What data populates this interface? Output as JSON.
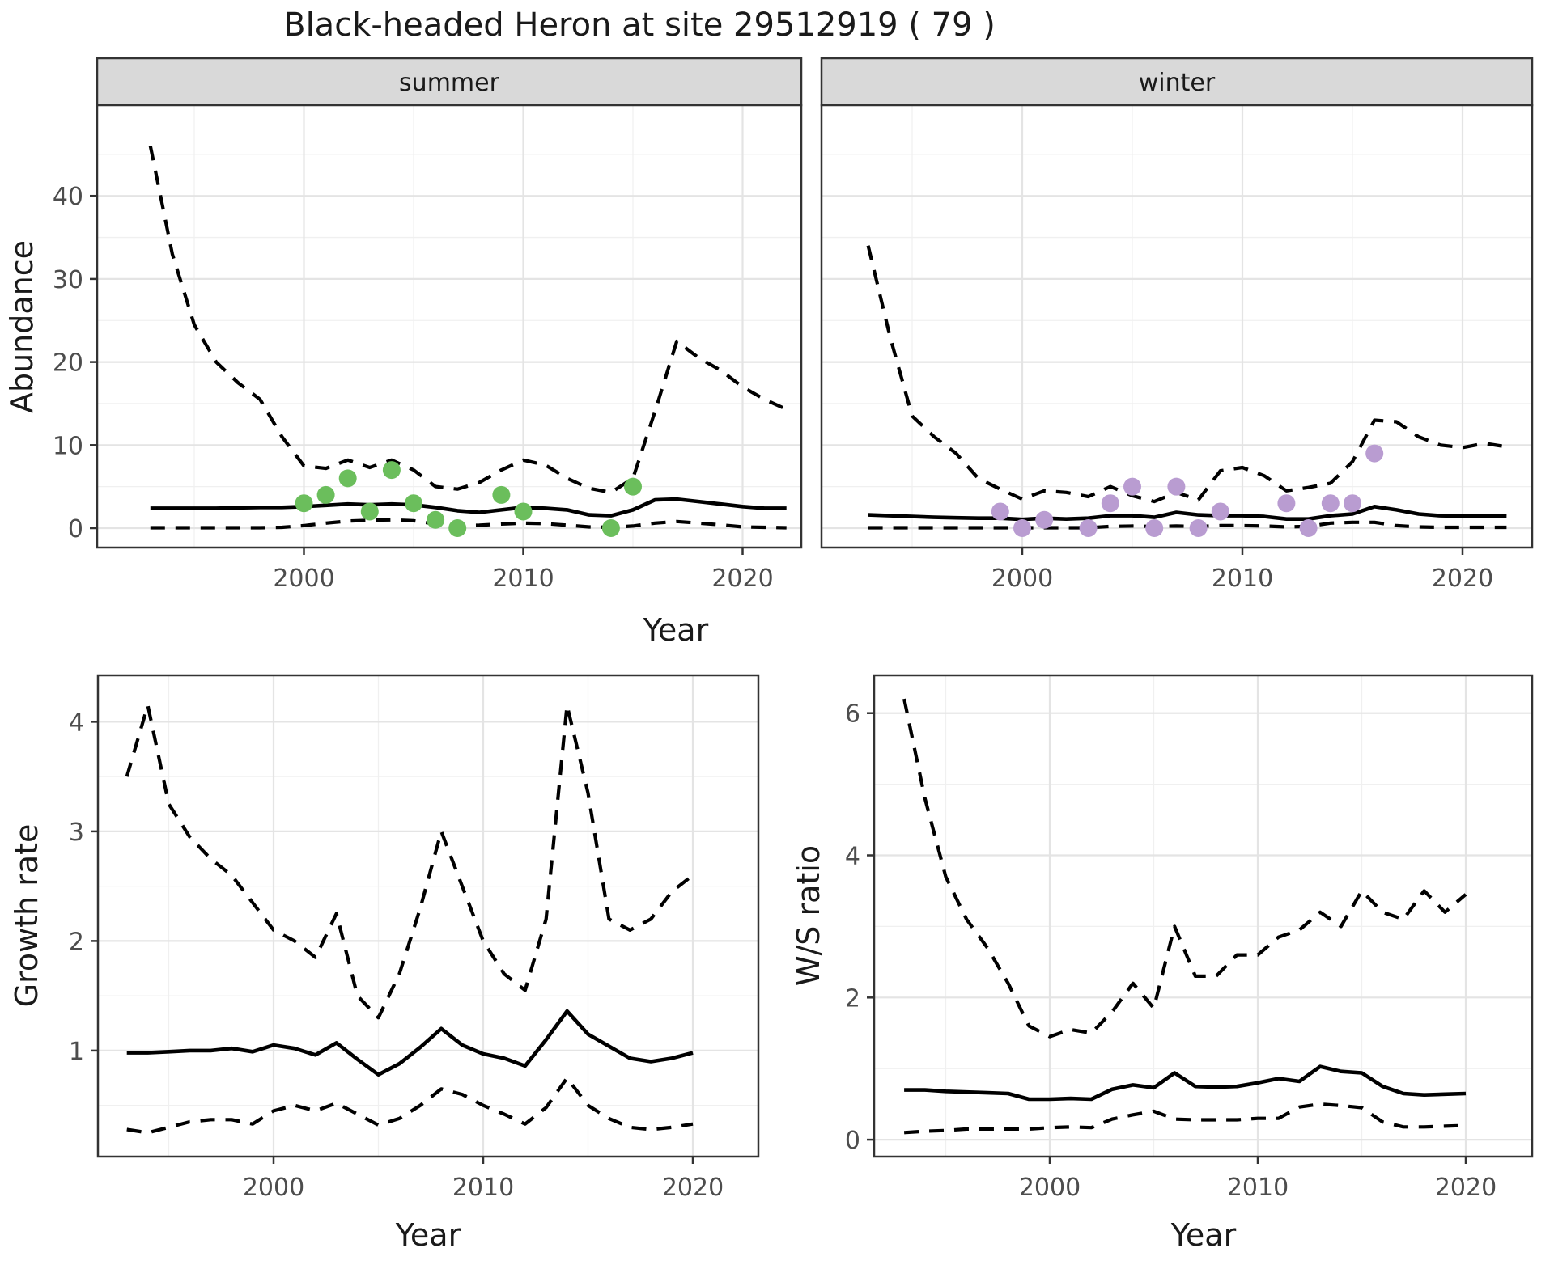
{
  "title": "Black-headed Heron at site 29512919 ( 79 )",
  "axis_titles": {
    "abundance": "Abundance",
    "growth": "Growth rate",
    "ws": "W/S ratio",
    "year": "Year"
  },
  "facets": [
    "summer",
    "winter"
  ],
  "colors": {
    "summer_points": "#6BBE5C",
    "winter_points": "#B99CD1",
    "line": "#000000",
    "grid_major": "#E4E4E4",
    "grid_minor": "#F0F0F0",
    "strip_bg": "#D9D9D9",
    "panel_border": "#333333",
    "tick_text": "#4D4D4D",
    "panel_bg": "#FFFFFF"
  },
  "chart_data": [
    {
      "id": "summer_abundance",
      "type": "line",
      "title": "summer",
      "xlabel": "Year",
      "ylabel": "Abundance",
      "x_ticks": [
        2000,
        2010,
        2020
      ],
      "x_minor": [
        1995,
        2005,
        2015
      ],
      "y_ticks": [
        0,
        10,
        20,
        30,
        40
      ],
      "y_minor": [
        5,
        15,
        25,
        35,
        45
      ],
      "ylim": [
        -1,
        50
      ],
      "y_labels_visible": true,
      "series": [
        {
          "name": "upper_95ci",
          "style": "dashed",
          "x": [
            1993,
            1994,
            1995,
            1996,
            1997,
            1998,
            1999,
            2000,
            2001,
            2002,
            2003,
            2004,
            2005,
            2006,
            2007,
            2008,
            2009,
            2010,
            2011,
            2012,
            2013,
            2014,
            2015,
            2016,
            2017,
            2018,
            2019,
            2020,
            2021,
            2022
          ],
          "y": [
            46,
            33,
            24.5,
            20,
            17.5,
            15.5,
            11,
            7.5,
            7.2,
            8.2,
            7.3,
            8.2,
            7,
            5,
            4.7,
            5.5,
            7,
            8.2,
            7.6,
            6,
            4.8,
            4.3,
            6,
            14,
            22.5,
            20.5,
            19,
            17,
            15.5,
            14.3
          ]
        },
        {
          "name": "median",
          "style": "solid",
          "x": [
            1993,
            1994,
            1995,
            1996,
            1997,
            1998,
            1999,
            2000,
            2001,
            2002,
            2003,
            2004,
            2005,
            2006,
            2007,
            2008,
            2009,
            2010,
            2011,
            2012,
            2013,
            2014,
            2015,
            2016,
            2017,
            2018,
            2019,
            2020,
            2021,
            2022
          ],
          "y": [
            2.4,
            2.4,
            2.4,
            2.4,
            2.45,
            2.5,
            2.5,
            2.6,
            2.75,
            2.9,
            2.8,
            2.9,
            2.8,
            2.5,
            2.1,
            1.9,
            2.2,
            2.5,
            2.4,
            2.2,
            1.6,
            1.5,
            2.2,
            3.4,
            3.5,
            3.2,
            2.9,
            2.6,
            2.4,
            2.4
          ]
        },
        {
          "name": "lower_95ci",
          "style": "dashed",
          "x": [
            1993,
            1994,
            1995,
            1996,
            1997,
            1998,
            1999,
            2000,
            2001,
            2002,
            2003,
            2004,
            2005,
            2006,
            2007,
            2008,
            2009,
            2010,
            2011,
            2012,
            2013,
            2014,
            2015,
            2016,
            2017,
            2018,
            2019,
            2020,
            2021,
            2022
          ],
          "y": [
            0.05,
            0.05,
            0.05,
            0.05,
            0.05,
            0.05,
            0.1,
            0.3,
            0.6,
            0.85,
            0.95,
            1.0,
            0.9,
            0.5,
            0.3,
            0.35,
            0.5,
            0.6,
            0.55,
            0.35,
            0.15,
            0.1,
            0.25,
            0.6,
            0.8,
            0.6,
            0.4,
            0.15,
            0.1,
            0.05
          ]
        },
        {
          "name": "observed_counts",
          "style": "points",
          "color_key": "summer_points",
          "x": [
            2000,
            2001,
            2002,
            2003,
            2004,
            2005,
            2006,
            2007,
            2009,
            2010,
            2014,
            2015
          ],
          "y": [
            3,
            4,
            6,
            2,
            7,
            3,
            1,
            0,
            4,
            2,
            0,
            5
          ]
        }
      ]
    },
    {
      "id": "winter_abundance",
      "type": "line",
      "title": "winter",
      "xlabel": "Year",
      "ylabel": "Abundance",
      "x_ticks": [
        2000,
        2010,
        2020
      ],
      "x_minor": [
        1995,
        2005,
        2015
      ],
      "y_ticks": [
        0,
        10,
        20,
        30,
        40
      ],
      "y_minor": [
        5,
        15,
        25,
        35,
        45
      ],
      "ylim": [
        -1,
        50
      ],
      "y_labels_visible": false,
      "series": [
        {
          "name": "upper_95ci",
          "style": "dashed",
          "x": [
            1993,
            1994,
            1995,
            1996,
            1997,
            1998,
            1999,
            2000,
            2001,
            2002,
            2003,
            2004,
            2005,
            2006,
            2007,
            2008,
            2009,
            2010,
            2011,
            2012,
            2013,
            2014,
            2015,
            2016,
            2017,
            2018,
            2019,
            2020,
            2021,
            2022
          ],
          "y": [
            34,
            23,
            13.5,
            11,
            9,
            6,
            4.7,
            3.5,
            4.5,
            4.3,
            3.8,
            5.0,
            3.9,
            3.2,
            4.3,
            3.4,
            6.9,
            7.3,
            6.3,
            4.5,
            4.9,
            5.4,
            8,
            13,
            12.8,
            11,
            10,
            9.7,
            10.2,
            9.8
          ]
        },
        {
          "name": "median",
          "style": "solid",
          "x": [
            1993,
            1994,
            1995,
            1996,
            1997,
            1998,
            1999,
            2000,
            2001,
            2002,
            2003,
            2004,
            2005,
            2006,
            2007,
            2008,
            2009,
            2010,
            2011,
            2012,
            2013,
            2014,
            2015,
            2016,
            2017,
            2018,
            2019,
            2020,
            2021,
            2022
          ],
          "y": [
            1.6,
            1.5,
            1.4,
            1.3,
            1.25,
            1.2,
            1.2,
            1.05,
            1.2,
            1.1,
            1.2,
            1.5,
            1.5,
            1.3,
            1.9,
            1.6,
            1.5,
            1.5,
            1.4,
            1.1,
            1.1,
            1.5,
            1.7,
            2.6,
            2.2,
            1.7,
            1.5,
            1.45,
            1.5,
            1.45
          ]
        },
        {
          "name": "lower_95ci",
          "style": "dashed",
          "x": [
            1993,
            1994,
            1995,
            1996,
            1997,
            1998,
            1999,
            2000,
            2001,
            2002,
            2003,
            2004,
            2005,
            2006,
            2007,
            2008,
            2009,
            2010,
            2011,
            2012,
            2013,
            2014,
            2015,
            2016,
            2017,
            2018,
            2019,
            2020,
            2021,
            2022
          ],
          "y": [
            0.05,
            0.05,
            0.05,
            0.05,
            0.05,
            0.05,
            0.05,
            0.05,
            0.05,
            0.05,
            0.05,
            0.2,
            0.25,
            0.2,
            0.25,
            0.2,
            0.3,
            0.3,
            0.25,
            0.15,
            0.2,
            0.6,
            0.7,
            0.7,
            0.3,
            0.15,
            0.1,
            0.1,
            0.1,
            0.1
          ]
        },
        {
          "name": "observed_counts",
          "style": "points",
          "color_key": "winter_points",
          "x": [
            1999,
            2000,
            2001,
            2003,
            2004,
            2005,
            2006,
            2007,
            2008,
            2009,
            2012,
            2013,
            2014,
            2015,
            2016
          ],
          "y": [
            2,
            0,
            1,
            0,
            3,
            5,
            0,
            5,
            0,
            2,
            3,
            0,
            3,
            3,
            9
          ]
        }
      ]
    },
    {
      "id": "growth_rate",
      "type": "line",
      "title": "",
      "xlabel": "Year",
      "ylabel": "Growth rate",
      "x_ticks": [
        2000,
        2010,
        2020
      ],
      "x_minor": [
        1995,
        2005,
        2015
      ],
      "y_ticks": [
        1,
        2,
        3,
        4
      ],
      "y_minor": [
        0.5,
        1.5,
        2.5,
        3.5
      ],
      "ylim": [
        0,
        4.4
      ],
      "y_labels_visible": true,
      "series": [
        {
          "name": "upper_95ci",
          "style": "dashed",
          "x": [
            1993,
            1994,
            1995,
            1996,
            1997,
            1998,
            1999,
            2000,
            2001,
            2002,
            2003,
            2004,
            2005,
            2006,
            2007,
            2008,
            2009,
            2010,
            2011,
            2012,
            2013,
            2014,
            2015,
            2016,
            2017,
            2018,
            2019,
            2020
          ],
          "y": [
            3.5,
            4.15,
            3.25,
            2.95,
            2.75,
            2.6,
            2.35,
            2.1,
            2.0,
            1.85,
            2.25,
            1.5,
            1.3,
            1.7,
            2.3,
            3.0,
            2.5,
            2.0,
            1.7,
            1.55,
            2.2,
            4.15,
            3.35,
            2.2,
            2.1,
            2.2,
            2.45,
            2.6
          ]
        },
        {
          "name": "median",
          "style": "solid",
          "x": [
            1993,
            1994,
            1995,
            1996,
            1997,
            1998,
            1999,
            2000,
            2001,
            2002,
            2003,
            2004,
            2005,
            2006,
            2007,
            2008,
            2009,
            2010,
            2011,
            2012,
            2013,
            2014,
            2015,
            2016,
            2017,
            2018,
            2019,
            2020
          ],
          "y": [
            0.98,
            0.98,
            0.99,
            1.0,
            1.0,
            1.02,
            0.99,
            1.05,
            1.02,
            0.96,
            1.07,
            0.92,
            0.78,
            0.88,
            1.03,
            1.2,
            1.05,
            0.97,
            0.93,
            0.86,
            1.1,
            1.36,
            1.15,
            1.04,
            0.93,
            0.9,
            0.93,
            0.98
          ]
        },
        {
          "name": "lower_95ci",
          "style": "dashed",
          "x": [
            1993,
            1994,
            1995,
            1996,
            1997,
            1998,
            1999,
            2000,
            2001,
            2002,
            2003,
            2004,
            2005,
            2006,
            2007,
            2008,
            2009,
            2010,
            2011,
            2012,
            2013,
            2014,
            2015,
            2016,
            2017,
            2018,
            2019,
            2020
          ],
          "y": [
            0.28,
            0.25,
            0.3,
            0.35,
            0.37,
            0.37,
            0.33,
            0.45,
            0.5,
            0.45,
            0.52,
            0.42,
            0.32,
            0.38,
            0.5,
            0.65,
            0.6,
            0.5,
            0.42,
            0.33,
            0.48,
            0.75,
            0.5,
            0.38,
            0.3,
            0.28,
            0.3,
            0.33
          ]
        }
      ]
    },
    {
      "id": "ws_ratio",
      "type": "line",
      "title": "",
      "xlabel": "Year",
      "ylabel": "W/S ratio",
      "x_ticks": [
        2000,
        2010,
        2020
      ],
      "x_minor": [
        1995,
        2005,
        2015
      ],
      "y_ticks": [
        0,
        2,
        4,
        6
      ],
      "y_minor": [
        1,
        3,
        5
      ],
      "ylim": [
        -0.2,
        6.5
      ],
      "y_labels_visible": true,
      "series": [
        {
          "name": "upper_95ci",
          "style": "dashed",
          "x": [
            1993,
            1994,
            1995,
            1996,
            1997,
            1998,
            1999,
            2000,
            2001,
            2002,
            2003,
            2004,
            2005,
            2006,
            2007,
            2008,
            2009,
            2010,
            2011,
            2012,
            2013,
            2014,
            2015,
            2016,
            2017,
            2018,
            2019,
            2020
          ],
          "y": [
            6.2,
            4.8,
            3.7,
            3.1,
            2.7,
            2.2,
            1.6,
            1.45,
            1.55,
            1.5,
            1.8,
            2.2,
            1.85,
            3.0,
            2.3,
            2.3,
            2.6,
            2.6,
            2.85,
            2.95,
            3.2,
            3.0,
            3.5,
            3.2,
            3.1,
            3.5,
            3.2,
            3.45
          ]
        },
        {
          "name": "median",
          "style": "solid",
          "x": [
            1993,
            1994,
            1995,
            1996,
            1997,
            1998,
            1999,
            2000,
            2001,
            2002,
            2003,
            2004,
            2005,
            2006,
            2007,
            2008,
            2009,
            2010,
            2011,
            2012,
            2013,
            2014,
            2015,
            2016,
            2017,
            2018,
            2019,
            2020
          ],
          "y": [
            0.7,
            0.7,
            0.68,
            0.67,
            0.66,
            0.65,
            0.57,
            0.57,
            0.58,
            0.57,
            0.71,
            0.77,
            0.73,
            0.94,
            0.75,
            0.74,
            0.75,
            0.8,
            0.86,
            0.82,
            1.03,
            0.96,
            0.94,
            0.75,
            0.65,
            0.63,
            0.64,
            0.65
          ]
        },
        {
          "name": "lower_95ci",
          "style": "dashed",
          "x": [
            1993,
            1994,
            1995,
            1996,
            1997,
            1998,
            1999,
            2000,
            2001,
            2002,
            2003,
            2004,
            2005,
            2006,
            2007,
            2008,
            2009,
            2010,
            2011,
            2012,
            2013,
            2014,
            2015,
            2016,
            2017,
            2018,
            2019,
            2020
          ],
          "y": [
            0.1,
            0.12,
            0.13,
            0.15,
            0.15,
            0.15,
            0.15,
            0.17,
            0.18,
            0.17,
            0.29,
            0.35,
            0.4,
            0.29,
            0.28,
            0.28,
            0.28,
            0.3,
            0.3,
            0.46,
            0.5,
            0.48,
            0.45,
            0.25,
            0.18,
            0.18,
            0.19,
            0.2
          ]
        }
      ]
    }
  ]
}
